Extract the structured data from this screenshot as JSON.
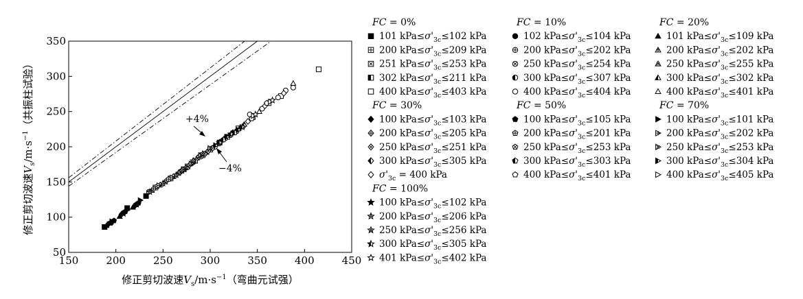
{
  "chart_data": {
    "type": "scatter",
    "xlabel": "修正剪切波速V_s/m·s^-1（弯曲元试强）",
    "ylabel": "修正剪切波速V_s/m·s^-1（共振柱试验）",
    "xlim": [
      150,
      450
    ],
    "ylim": [
      50,
      350
    ],
    "xticks": [
      "150",
      "200",
      "250",
      "300",
      "350",
      "400",
      "450"
    ],
    "yticks": [
      "50",
      "100",
      "150",
      "200",
      "250",
      "300",
      "350"
    ],
    "grid": false,
    "legend_position": "right",
    "reference_lines": [
      {
        "label": "",
        "slope": 1.0,
        "style": "solid"
      },
      {
        "label": "+4%",
        "slope": 1.04,
        "style": "dash-dot"
      },
      {
        "label": "−4%",
        "slope": 0.96,
        "style": "dash-dot"
      }
    ],
    "groups": [
      {
        "title": "FC = 0%",
        "series": [
          {
            "name": "101 kPa≤σ'3c≤102 kPa",
            "marker": "square-filled",
            "x": [
              188,
              212,
              232
            ],
            "y": [
              86,
              113,
              130
            ]
          },
          {
            "name": "200 kPa≤σ'3c≤209 kPa",
            "marker": "square-plus",
            "x": [
              242,
              258,
              272
            ],
            "y": [
              142,
              155,
              168
            ]
          },
          {
            "name": "251 kPa≤σ'3c≤253 kPa",
            "marker": "square-x",
            "x": [
              276,
              284,
              292
            ],
            "y": [
              172,
              180,
              188
            ]
          },
          {
            "name": "302 kPa≤σ'3c≤211 kPa",
            "marker": "square-half",
            "x": [
              300,
              310,
              318
            ],
            "y": [
              196,
              206,
              214
            ]
          },
          {
            "name": "400 kPa≤σ'3c≤403 kPa",
            "marker": "square-open",
            "x": [
              330,
              345,
              362,
              375,
              415
            ],
            "y": [
              226,
              242,
              262,
              272,
              310
            ]
          }
        ]
      },
      {
        "title": "FC = 10%",
        "series": [
          {
            "name": "102 kPa≤σ'3c≤104 kPa",
            "marker": "circle-filled",
            "x": [
              195,
              208,
              222
            ],
            "y": [
              92,
              106,
              118
            ]
          },
          {
            "name": "200 kPa≤σ'3c≤202 kPa",
            "marker": "circle-plus",
            "x": [
              235,
              248,
              262
            ],
            "y": [
              136,
              146,
              158
            ]
          },
          {
            "name": "250 kPa≤σ'3c≤254 kPa",
            "marker": "circle-x",
            "x": [
              268,
              280,
              290
            ],
            "y": [
              164,
              176,
              186
            ]
          },
          {
            "name": "300 kPa≤σ'3c≤307 kPa",
            "marker": "circle-half",
            "x": [
              305,
              316,
              328
            ],
            "y": [
              200,
              212,
              222
            ]
          },
          {
            "name": "400 kPa≤σ'3c≤404 kPa",
            "marker": "circle-open",
            "x": [
              342,
              355,
              372,
              380,
              388
            ],
            "y": [
              246,
              254,
              270,
              280,
              284
            ]
          }
        ]
      },
      {
        "title": "FC = 20%",
        "series": [
          {
            "name": "101 kPa≤σ'3c≤109 kPa",
            "marker": "triangle-filled",
            "x": [
              190,
              204,
              218
            ],
            "y": [
              88,
              101,
              114
            ]
          },
          {
            "name": "200 kPa≤σ'3c≤202 kPa",
            "marker": "triangle-plus",
            "x": [
              238,
              252,
              266
            ],
            "y": [
              138,
              150,
              162
            ]
          },
          {
            "name": "250 kPa≤σ'3c≤255 kPa",
            "marker": "triangle-x",
            "x": [
              274,
              286,
              296
            ],
            "y": [
              170,
              184,
              192
            ]
          },
          {
            "name": "300 kPa≤σ'3c≤302 kPa",
            "marker": "triangle-half",
            "x": [
              308,
              320,
              332
            ],
            "y": [
              204,
              216,
              228
            ]
          },
          {
            "name": "400 kPa≤σ'3c≤401 kPa",
            "marker": "triangle-open",
            "x": [
              336,
              352,
              388
            ],
            "y": [
              232,
              250,
              290
            ]
          }
        ]
      },
      {
        "title": "FC = 30%",
        "series": [
          {
            "name": "100 kPa≤σ'3c≤103 kPa",
            "marker": "diamond-filled",
            "x": [
              192,
              206,
              220
            ],
            "y": [
              90,
              104,
              116
            ]
          },
          {
            "name": "200 kPa≤σ'3c≤205 kPa",
            "marker": "diamond-plus",
            "x": [
              240,
              254,
              268
            ],
            "y": [
              140,
              152,
              164
            ]
          },
          {
            "name": "250 kPa≤σ'3c≤251 kPa",
            "marker": "diamond-x",
            "x": [
              278,
              288,
              298
            ],
            "y": [
              174,
              186,
              194
            ]
          },
          {
            "name": "300 kPa≤σ'3c≤305 kPa",
            "marker": "diamond-half",
            "x": [
              312,
              324,
              336
            ],
            "y": [
              208,
              220,
              230
            ]
          },
          {
            "name": "σ'3c = 400 kPa",
            "marker": "diamond-open",
            "x": [
              340,
              358,
              378
            ],
            "y": [
              236,
              258,
              276
            ]
          }
        ]
      },
      {
        "title": "FC = 50%",
        "series": [
          {
            "name": "100 kPa≤σ'3c≤105 kPa",
            "marker": "pentagon-filled",
            "x": [
              198,
              210,
              224
            ],
            "y": [
              95,
              108,
              120
            ]
          },
          {
            "name": "200 kPa≤σ'3c≤201 kPa",
            "marker": "pentagon-plus",
            "x": [
              244,
              256,
              270
            ],
            "y": [
              144,
              154,
              166
            ]
          },
          {
            "name": "250 kPa≤σ'3c≤253 kPa",
            "marker": "pentagon-x",
            "x": [
              272,
              282,
              294
            ],
            "y": [
              168,
              178,
              190
            ]
          },
          {
            "name": "300 kPa≤σ'3c≤303 kPa",
            "marker": "pentagon-half",
            "x": [
              302,
              314,
              326
            ],
            "y": [
              198,
              210,
              220
            ]
          },
          {
            "name": "400 kPa≤σ'3c≤401 kPa",
            "marker": "pentagon-open",
            "x": [
              344,
              360
            ],
            "y": [
              240,
              262
            ]
          }
        ]
      },
      {
        "title": "FC = 70%",
        "series": [
          {
            "name": "100 kPa≤σ'3c≤101 kPa",
            "marker": "tri-right-filled",
            "x": [
              196,
              212,
              226
            ],
            "y": [
              94,
              110,
              124
            ]
          },
          {
            "name": "200 kPa≤σ'3c≤202 kPa",
            "marker": "tri-right-plus",
            "x": [
              246,
              260,
              272
            ],
            "y": [
              145,
              156,
              168
            ]
          },
          {
            "name": "250 kPa≤σ'3c≤253 kPa",
            "marker": "tri-right-x",
            "x": [
              280,
              290,
              300
            ],
            "y": [
              176,
              188,
              198
            ]
          },
          {
            "name": "300 kPa≤σ'3c≤304 kPa",
            "marker": "tri-right-half",
            "x": [
              306,
              318,
              330
            ],
            "y": [
              202,
              214,
              224
            ]
          },
          {
            "name": "400 kPa≤σ'3c≤405 kPa",
            "marker": "tri-right-open",
            "x": [
              346,
              364
            ],
            "y": [
              244,
              264
            ]
          }
        ]
      },
      {
        "title": "FC = 100%",
        "series": [
          {
            "name": "100 kPa≤σ'3c≤102 kPa",
            "marker": "star-filled",
            "x": [
              194,
              208,
              222
            ],
            "y": [
              92,
              105,
              118
            ]
          },
          {
            "name": "200 kPa≤σ'3c≤206 kPa",
            "marker": "star-plus",
            "x": [
              236,
              250,
              264
            ],
            "y": [
              136,
              148,
              160
            ]
          },
          {
            "name": "250 kPa≤σ'3c≤256 kPa",
            "marker": "star-x",
            "x": [
              270,
              282,
              292
            ],
            "y": [
              166,
              180,
              190
            ]
          },
          {
            "name": "300 kPa≤σ'3c≤305 kPa",
            "marker": "star-half",
            "x": [
              310,
              322,
              334
            ],
            "y": [
              206,
              218,
              228
            ]
          },
          {
            "name": "401 kPa≤σ'3c≤402 kPa",
            "marker": "star-open",
            "x": [
              348,
              366
            ],
            "y": [
              246,
              266
            ]
          }
        ]
      }
    ]
  }
}
